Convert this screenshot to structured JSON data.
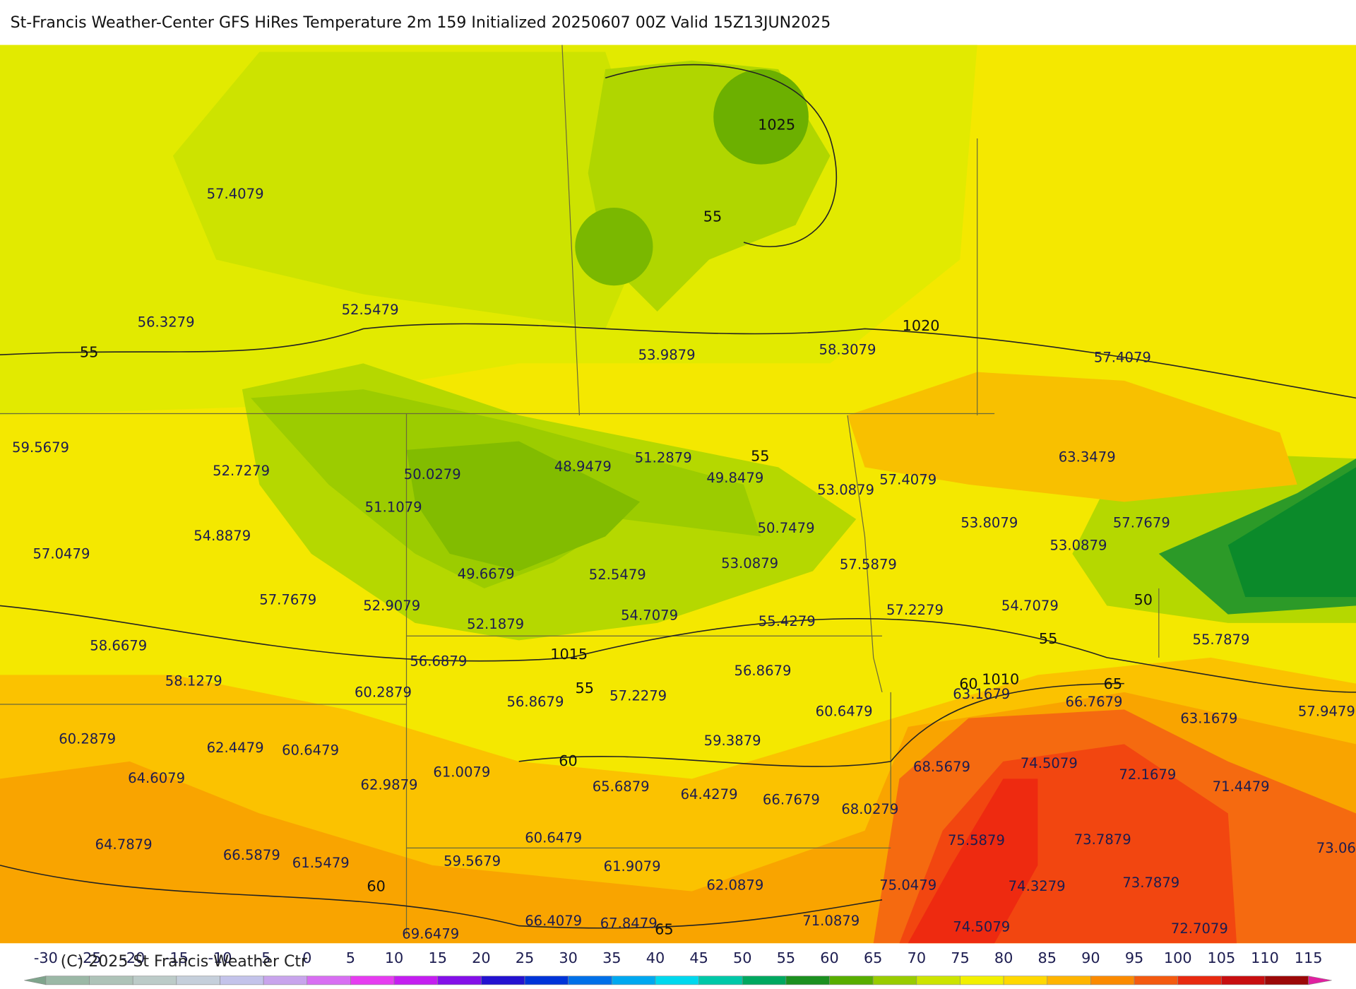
{
  "header": {
    "title": "St-Francis Weather-Center GFS HiRes Temperature 2m  159 Initialized 20250607 00Z Valid 15Z13JUN2025"
  },
  "map": {
    "temperature_labels": [
      "57.4079",
      "56.3279",
      "52.5479",
      "53.9879",
      "58.3079",
      "57.4079",
      "59.5679",
      "52.7279",
      "50.0279",
      "48.9479",
      "51.2879",
      "49.8479",
      "53.0879",
      "57.4079",
      "63.3479",
      "51.1079",
      "54.8879",
      "57.0479",
      "50.7479",
      "53.8079",
      "57.7679",
      "53.0879",
      "53.0879",
      "57.5879",
      "49.6679",
      "52.5479",
      "57.7679",
      "52.9079",
      "57.2279",
      "54.7079",
      "54.7079",
      "52.1879",
      "55.4279",
      "55.7879",
      "58.6679",
      "56.6879",
      "56.8679",
      "58.1279",
      "60.2879",
      "56.8679",
      "57.2279",
      "63.1679",
      "66.7679",
      "63.1679",
      "57.9479",
      "60.6479",
      "60.2879",
      "62.4479",
      "60.6479",
      "59.3879",
      "68.5679",
      "74.5079",
      "72.1679",
      "71.4479",
      "64.6079",
      "61.0079",
      "62.9879",
      "65.6879",
      "64.4279",
      "66.7679",
      "68.0279",
      "64.7879",
      "75.5879",
      "73.7879",
      "73.06",
      "60.6479",
      "66.5879",
      "61.5479",
      "59.5679",
      "61.9079",
      "62.0879",
      "75.0479",
      "74.3279",
      "73.7879",
      "66.4079",
      "67.8479",
      "71.0879",
      "74.5079",
      "72.7079",
      "69.6479"
    ],
    "contour_labels": [
      "1025",
      "55",
      "1020",
      "55",
      "55",
      "50",
      "55",
      "1015",
      "55",
      "60",
      "1010",
      "65",
      "60",
      "60",
      "65"
    ]
  },
  "colorbar": {
    "ticks": [
      -30,
      -25,
      -20,
      -15,
      -10,
      -5,
      0,
      5,
      10,
      15,
      20,
      25,
      30,
      35,
      40,
      45,
      50,
      55,
      60,
      65,
      70,
      75,
      80,
      85,
      90,
      95,
      100,
      105,
      110,
      115
    ],
    "colors": [
      "#7fa48c",
      "#9bb8a6",
      "#aec3b8",
      "#bccbc8",
      "#c5cfdb",
      "#c3c3ea",
      "#c8a4ec",
      "#d86ef2",
      "#e63cf0",
      "#c41ef0",
      "#8410e8",
      "#2412d0",
      "#0034d8",
      "#0070e8",
      "#00a8f0",
      "#00d8ee",
      "#00c8a8",
      "#00a860",
      "#1c9020",
      "#58ae00",
      "#98cc00",
      "#cce400",
      "#f2f000",
      "#ffd800",
      "#ffb400",
      "#fb8a00",
      "#f45a10",
      "#e82a10",
      "#c80e10",
      "#9c0808",
      "#e020a0"
    ]
  },
  "footer": {
    "copyright": "(C) 2025 St Francis Weather Ctr"
  }
}
